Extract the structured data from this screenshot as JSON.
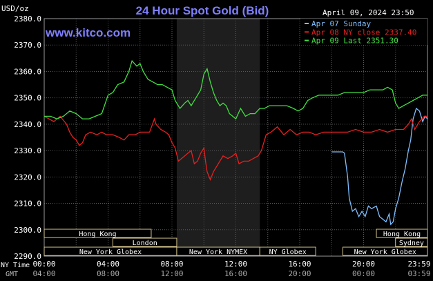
{
  "header": {
    "title": "24 Hour Spot Gold (Bid)",
    "unit": "USD/oz",
    "timestamp": "April 09, 2024 23:50",
    "watermark": "www.kitco.com"
  },
  "colors": {
    "title": "#7f7fff",
    "apr07": "#7fbfff",
    "apr08": "#e82020",
    "apr09": "#40e040",
    "grid": "#5a5a5a",
    "session_fill": "#1e1e1e",
    "box_border": "#d8c890"
  },
  "legend": [
    {
      "label": "Apr 07 Sunday",
      "color": "#7fbfff"
    },
    {
      "label": "Apr 08 NY close 2337.40",
      "color": "#e82020"
    },
    {
      "label": "Apr 09 Last 2351.30",
      "color": "#40e040"
    }
  ],
  "sessions": {
    "row1": [
      "Hong Kong",
      "Hong Kong"
    ],
    "row2": [
      "London",
      "Sydney"
    ],
    "row3": [
      "New York Globex",
      "New York NYMEX",
      "NY Globex",
      "New York Globex"
    ]
  },
  "axis_captions": {
    "ny": "NY Time",
    "gmt": "GMT"
  },
  "chart_data": {
    "type": "line",
    "title": "24 Hour Spot Gold (Bid)",
    "ylabel": "USD/oz",
    "ylim": [
      2290,
      2380
    ],
    "yticks": [
      "2380.0",
      "2370.0",
      "2360.0",
      "2350.0",
      "2340.0",
      "2330.0",
      "2320.0",
      "2310.0",
      "2300.0",
      "2290.0"
    ],
    "xlim": [
      0,
      24
    ],
    "xticks_ny": [
      "00:00",
      "04:00",
      "08:00",
      "12:00",
      "16:00",
      "20:00",
      "23:59"
    ],
    "xticks_gmt": [
      "04:00",
      "08:00",
      "12:00",
      "16:00",
      "20:00",
      "00:00",
      "03:59"
    ],
    "shaded_hours": [
      8.3,
      13.5
    ],
    "grid": true,
    "legend_position": "top-right",
    "series": [
      {
        "name": "Apr 07 Sunday",
        "color": "#7fbfff",
        "points": [
          [
            18,
            2329.5
          ],
          [
            18.7,
            2329.5
          ],
          [
            18.8,
            2329
          ],
          [
            19,
            2320
          ],
          [
            19.1,
            2312
          ],
          [
            19.3,
            2307
          ],
          [
            19.5,
            2308
          ],
          [
            19.7,
            2305
          ],
          [
            19.9,
            2307
          ],
          [
            20.1,
            2305
          ],
          [
            20.3,
            2309
          ],
          [
            20.5,
            2308
          ],
          [
            20.8,
            2309
          ],
          [
            21,
            2305
          ],
          [
            21.2,
            2304
          ],
          [
            21.4,
            2303
          ],
          [
            21.6,
            2306
          ],
          [
            21.7,
            2302
          ],
          [
            21.85,
            2303
          ],
          [
            22,
            2308
          ],
          [
            22.2,
            2312
          ],
          [
            22.4,
            2318
          ],
          [
            22.6,
            2323
          ],
          [
            22.8,
            2330
          ],
          [
            22.95,
            2334
          ],
          [
            23.1,
            2342
          ],
          [
            23.3,
            2346
          ],
          [
            23.5,
            2345
          ],
          [
            23.7,
            2341
          ],
          [
            23.85,
            2343
          ],
          [
            24,
            2342
          ]
        ]
      },
      {
        "name": "Apr 08 NY close 2337.40",
        "color": "#e82020",
        "points": [
          [
            0,
            2343
          ],
          [
            0.3,
            2342
          ],
          [
            0.6,
            2341
          ],
          [
            1,
            2343
          ],
          [
            1.4,
            2340
          ],
          [
            1.6,
            2337
          ],
          [
            1.8,
            2335
          ],
          [
            2,
            2334
          ],
          [
            2.2,
            2332
          ],
          [
            2.4,
            2333
          ],
          [
            2.6,
            2336
          ],
          [
            2.9,
            2337
          ],
          [
            3.3,
            2336
          ],
          [
            3.6,
            2337
          ],
          [
            3.9,
            2336
          ],
          [
            4.3,
            2336
          ],
          [
            4.7,
            2335
          ],
          [
            5,
            2334
          ],
          [
            5.3,
            2336
          ],
          [
            5.7,
            2336
          ],
          [
            6,
            2337
          ],
          [
            6.3,
            2337
          ],
          [
            6.6,
            2337
          ],
          [
            6.9,
            2342
          ],
          [
            7,
            2340
          ],
          [
            7.3,
            2338
          ],
          [
            7.6,
            2337
          ],
          [
            7.8,
            2336
          ],
          [
            8,
            2333
          ],
          [
            8.2,
            2331
          ],
          [
            8.4,
            2326
          ],
          [
            8.6,
            2327
          ],
          [
            8.8,
            2328
          ],
          [
            9.0,
            2329
          ],
          [
            9.2,
            2330
          ],
          [
            9.4,
            2325
          ],
          [
            9.6,
            2326
          ],
          [
            9.8,
            2329
          ],
          [
            10,
            2331
          ],
          [
            10.1,
            2326
          ],
          [
            10.2,
            2322
          ],
          [
            10.4,
            2319
          ],
          [
            10.6,
            2322
          ],
          [
            10.9,
            2325
          ],
          [
            11.2,
            2328
          ],
          [
            11.5,
            2327
          ],
          [
            11.8,
            2328
          ],
          [
            12,
            2329
          ],
          [
            12.2,
            2325
          ],
          [
            12.5,
            2326
          ],
          [
            12.8,
            2326
          ],
          [
            13.1,
            2327
          ],
          [
            13.4,
            2328
          ],
          [
            13.6,
            2330
          ],
          [
            13.9,
            2336
          ],
          [
            14.2,
            2337
          ],
          [
            14.6,
            2339
          ],
          [
            15,
            2336
          ],
          [
            15.4,
            2338
          ],
          [
            15.8,
            2336
          ],
          [
            16.2,
            2337
          ],
          [
            16.6,
            2337
          ],
          [
            17,
            2336
          ],
          [
            17.5,
            2337
          ],
          [
            18,
            2337
          ],
          [
            18.5,
            2337
          ],
          [
            19,
            2337
          ],
          [
            19.5,
            2338
          ],
          [
            20,
            2337
          ],
          [
            20.5,
            2337
          ],
          [
            21,
            2338
          ],
          [
            21.5,
            2337
          ],
          [
            22,
            2338
          ],
          [
            22.5,
            2338
          ],
          [
            22.8,
            2340
          ],
          [
            23,
            2342
          ],
          [
            23.2,
            2338
          ],
          [
            23.5,
            2341
          ],
          [
            23.8,
            2343
          ],
          [
            24,
            2343
          ]
        ]
      },
      {
        "name": "Apr 09 Last 2351.30",
        "color": "#40e040",
        "points": [
          [
            0,
            2343
          ],
          [
            0.4,
            2343
          ],
          [
            0.8,
            2342
          ],
          [
            1.2,
            2343
          ],
          [
            1.6,
            2345
          ],
          [
            2,
            2344
          ],
          [
            2.4,
            2342
          ],
          [
            2.8,
            2342
          ],
          [
            3.2,
            2343
          ],
          [
            3.6,
            2344
          ],
          [
            4,
            2351
          ],
          [
            4.3,
            2352
          ],
          [
            4.6,
            2355
          ],
          [
            5,
            2356
          ],
          [
            5.3,
            2360
          ],
          [
            5.5,
            2364
          ],
          [
            5.8,
            2362
          ],
          [
            6,
            2363
          ],
          [
            6.2,
            2360
          ],
          [
            6.5,
            2357
          ],
          [
            6.8,
            2356
          ],
          [
            7.1,
            2355
          ],
          [
            7.4,
            2355
          ],
          [
            7.7,
            2354
          ],
          [
            8,
            2353
          ],
          [
            8.2,
            2349
          ],
          [
            8.3,
            2348
          ],
          [
            8.5,
            2346
          ],
          [
            8.8,
            2348
          ],
          [
            9.0,
            2349
          ],
          [
            9.2,
            2347
          ],
          [
            9.5,
            2350
          ],
          [
            9.8,
            2353
          ],
          [
            10,
            2359
          ],
          [
            10.2,
            2361
          ],
          [
            10.4,
            2356
          ],
          [
            10.6,
            2352
          ],
          [
            10.8,
            2349
          ],
          [
            11,
            2347
          ],
          [
            11.2,
            2348
          ],
          [
            11.4,
            2347
          ],
          [
            11.6,
            2344
          ],
          [
            11.8,
            2343
          ],
          [
            12,
            2342
          ],
          [
            12.3,
            2346
          ],
          [
            12.6,
            2343
          ],
          [
            12.9,
            2344
          ],
          [
            13.2,
            2344
          ],
          [
            13.5,
            2346
          ],
          [
            13.8,
            2346
          ],
          [
            14.1,
            2347
          ],
          [
            14.5,
            2347
          ],
          [
            14.9,
            2347
          ],
          [
            15.2,
            2347
          ],
          [
            15.6,
            2346
          ],
          [
            15.9,
            2345
          ],
          [
            16.2,
            2346
          ],
          [
            16.5,
            2349
          ],
          [
            16.8,
            2350
          ],
          [
            17.2,
            2351
          ],
          [
            17.6,
            2351
          ],
          [
            18,
            2351
          ],
          [
            18.4,
            2351
          ],
          [
            18.8,
            2352
          ],
          [
            19.2,
            2352
          ],
          [
            19.6,
            2352
          ],
          [
            20,
            2352
          ],
          [
            20.4,
            2353
          ],
          [
            20.8,
            2353
          ],
          [
            21.2,
            2353
          ],
          [
            21.5,
            2354
          ],
          [
            21.8,
            2353
          ],
          [
            22,
            2348
          ],
          [
            22.2,
            2346
          ],
          [
            22.5,
            2347
          ],
          [
            22.8,
            2348
          ],
          [
            23.1,
            2349
          ],
          [
            23.4,
            2350
          ],
          [
            23.7,
            2351
          ],
          [
            24,
            2351
          ]
        ]
      }
    ]
  }
}
